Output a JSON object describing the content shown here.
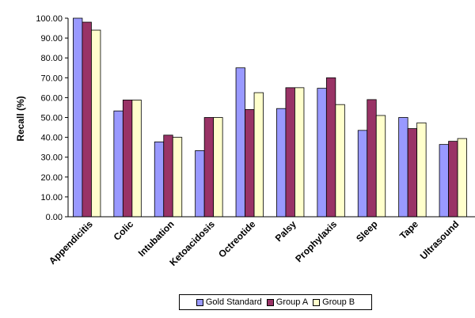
{
  "chart_data": {
    "type": "bar",
    "ylabel": "Recall (%)",
    "ylim": [
      0,
      100
    ],
    "ytick_step": 10,
    "ytick_labels": [
      "0.00",
      "10.00",
      "20.00",
      "30.00",
      "40.00",
      "50.00",
      "60.00",
      "70.00",
      "80.00",
      "90.00",
      "100.00"
    ],
    "categories": [
      "Appendicitis",
      "Colic",
      "Intubation",
      "Ketoacidosis",
      "Octreotide",
      "Palsy",
      "Prophylaxis",
      "Sleep",
      "Tape",
      "Ultrasound"
    ],
    "series": [
      {
        "name": "Gold Standard",
        "color": "#9999ff",
        "values": [
          100,
          53.3,
          37.7,
          33.3,
          75,
          54.5,
          64.7,
          43.5,
          50,
          36.4
        ]
      },
      {
        "name": "Group A",
        "color": "#993366",
        "values": [
          98,
          58.8,
          41.1,
          50,
          54,
          65,
          70,
          59,
          44.4,
          38
        ]
      },
      {
        "name": "Group B",
        "color": "#ffffcc",
        "values": [
          94,
          58.8,
          40,
          50,
          62.5,
          65,
          56.5,
          51,
          47.3,
          39.4
        ]
      }
    ],
    "legend_position": "bottom",
    "grid": false
  }
}
